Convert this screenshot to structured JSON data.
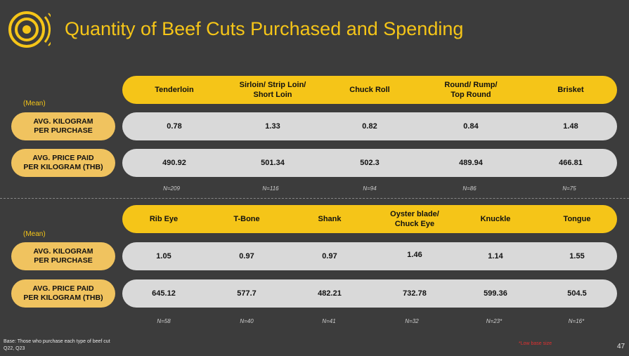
{
  "title": "Quantity of Beef Cuts Purchased and Spending",
  "colors": {
    "accent": "#f5c518",
    "label_pill": "#f0c35f",
    "row_pill": "#d9d9d9",
    "background": "#3c3c3c"
  },
  "top_section": {
    "mean_label": "(Mean)",
    "columns": [
      {
        "label": "Tenderloin",
        "kg": "0.78",
        "price": "490.92",
        "n": "N=209"
      },
      {
        "label": "Sirloin/ Strip Loin/\nShort Loin",
        "kg": "1.33",
        "price": "501.34",
        "n": "N=116"
      },
      {
        "label": "Chuck Roll",
        "kg": "0.82",
        "price": "502.3",
        "n": "N=94"
      },
      {
        "label": "Round/ Rump/\nTop Round",
        "kg": "0.84",
        "price": "489.94",
        "n": "N=86"
      },
      {
        "label": "Brisket",
        "kg": "1.48",
        "price": "466.81",
        "n": "N=75"
      }
    ],
    "row_labels": {
      "kg": "AVG. KILOGRAM\nPER PURCHASE",
      "price": "AVG. PRICE PAID\nPER KILOGRAM (THB)"
    }
  },
  "bottom_section": {
    "mean_label": "(Mean)",
    "columns": [
      {
        "label": "Rib Eye",
        "kg": "1.05",
        "price": "645.12",
        "n": "N=58"
      },
      {
        "label": "T-Bone",
        "kg": "0.97",
        "price": "577.7",
        "n": "N=40"
      },
      {
        "label": "Shank",
        "kg": "0.97",
        "price": "482.21",
        "n": "N=41"
      },
      {
        "label": "Oyster blade/\nChuck Eye",
        "kg": "1.46",
        "price": "732.78",
        "n": "N=32"
      },
      {
        "label": "Knuckle",
        "kg": "1.14",
        "price": "599.36",
        "n": "N=23*"
      },
      {
        "label": "Tongue",
        "kg": "1.55",
        "price": "504.5",
        "n": "N=16*"
      }
    ],
    "row_labels": {
      "kg": "AVG. KILOGRAM\nPER PURCHASE",
      "price": "AVG. PRICE PAID\nPER KILOGRAM (THB)"
    }
  },
  "footer": {
    "base_note": "Base: Those who purchase each type of beef cut\nQ22, Q23",
    "low_base_note": "*Low base size",
    "page_number": "47"
  },
  "icons": {
    "logo": "concentric-circles-logo-icon"
  }
}
